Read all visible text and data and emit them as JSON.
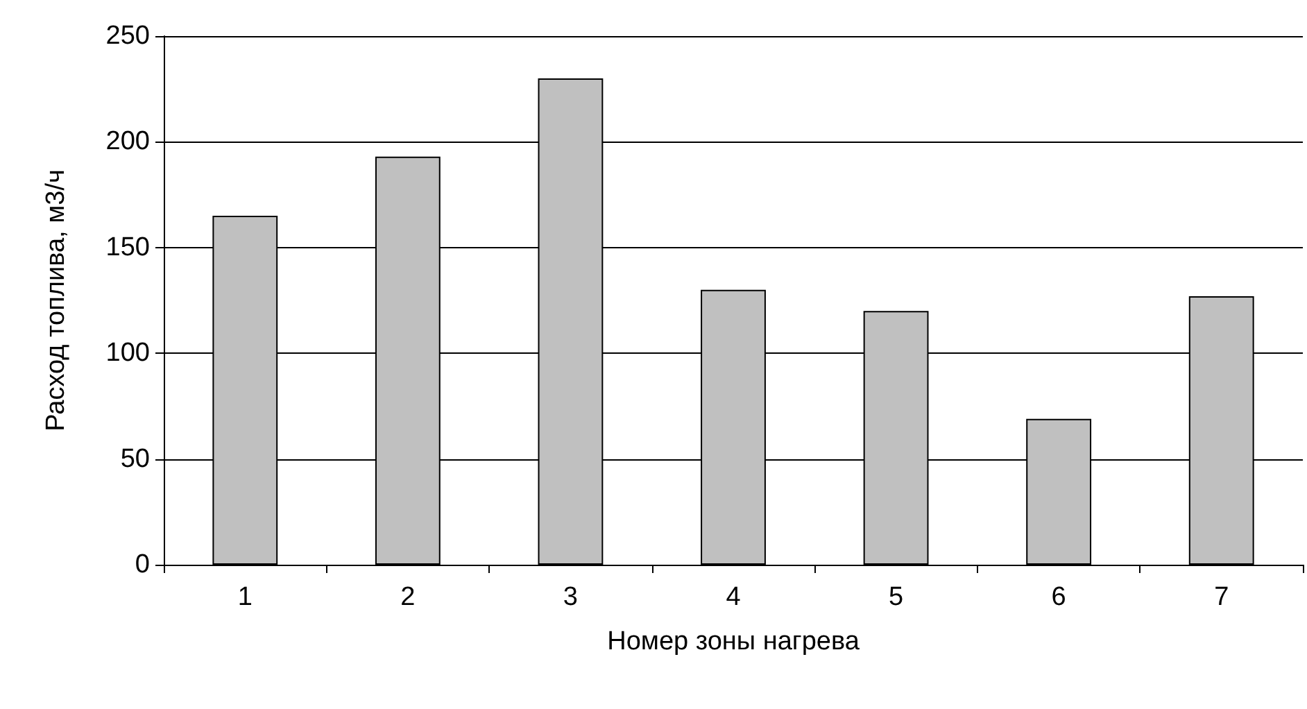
{
  "chart_data": {
    "type": "bar",
    "xlabel": "Номер зоны нагрева",
    "ylabel": "Расход топлива, м3/ч",
    "categories": [
      "1",
      "2",
      "3",
      "4",
      "5",
      "6",
      "7"
    ],
    "values": [
      165,
      193,
      230,
      130,
      120,
      69,
      127
    ],
    "color": "#c0c0c0",
    "ylim": [
      0,
      250
    ],
    "yticks": [
      0,
      50,
      100,
      150,
      200,
      250
    ],
    "grid": "y"
  }
}
